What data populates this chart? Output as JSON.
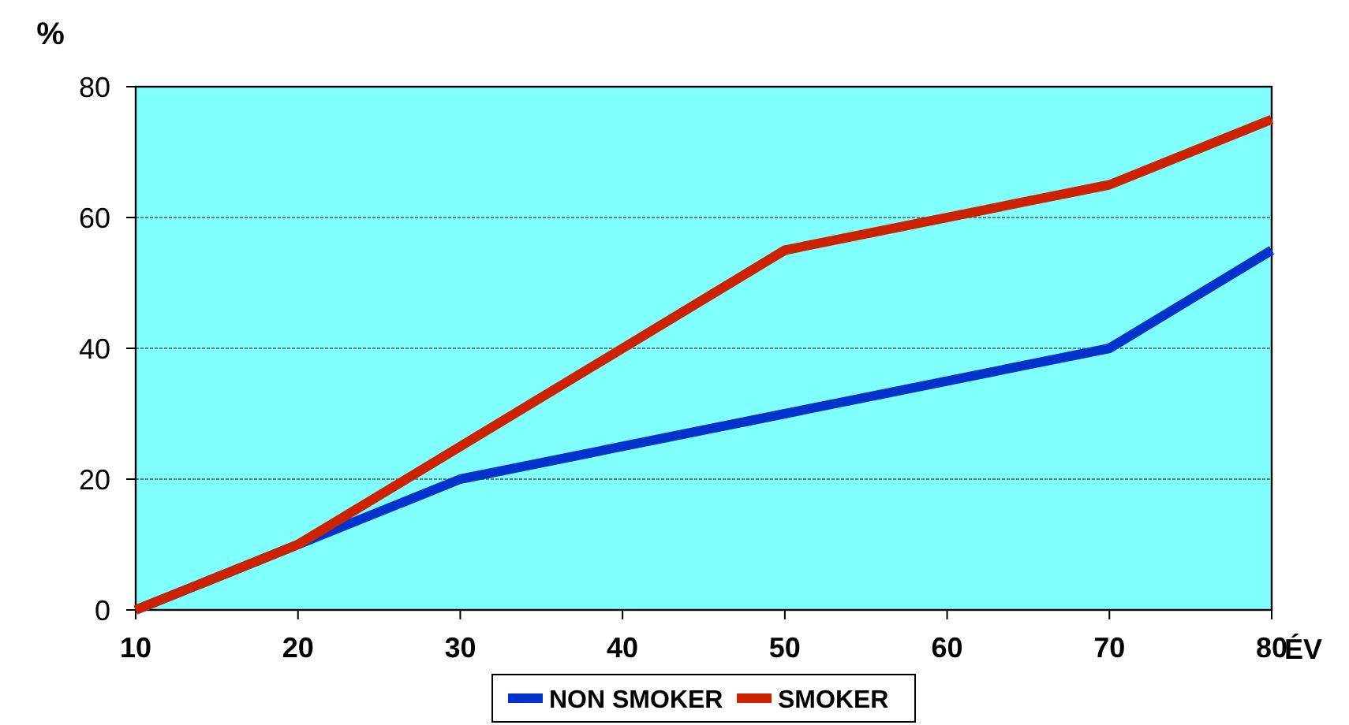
{
  "chart_data": {
    "type": "line",
    "ylabel": "%",
    "xlabel": "ÉV",
    "x": [
      10,
      20,
      30,
      50,
      70,
      80
    ],
    "xlim": [
      10,
      80
    ],
    "xticks": [
      10,
      20,
      30,
      40,
      50,
      60,
      70,
      80
    ],
    "ylim": [
      0,
      80
    ],
    "yticks": [
      0,
      20,
      40,
      60,
      80
    ],
    "grid": "y",
    "legend": "bottom",
    "marker": "none",
    "line_style": "solid",
    "series": [
      {
        "name": "NON SMOKER",
        "color": "#0033cc",
        "values": [
          0,
          10,
          20,
          30,
          40,
          55
        ]
      },
      {
        "name": "SMOKER",
        "color": "#cc2200",
        "x": [
          10,
          20,
          50,
          70,
          80
        ],
        "values": [
          0,
          10,
          55,
          65,
          75
        ]
      }
    ]
  }
}
